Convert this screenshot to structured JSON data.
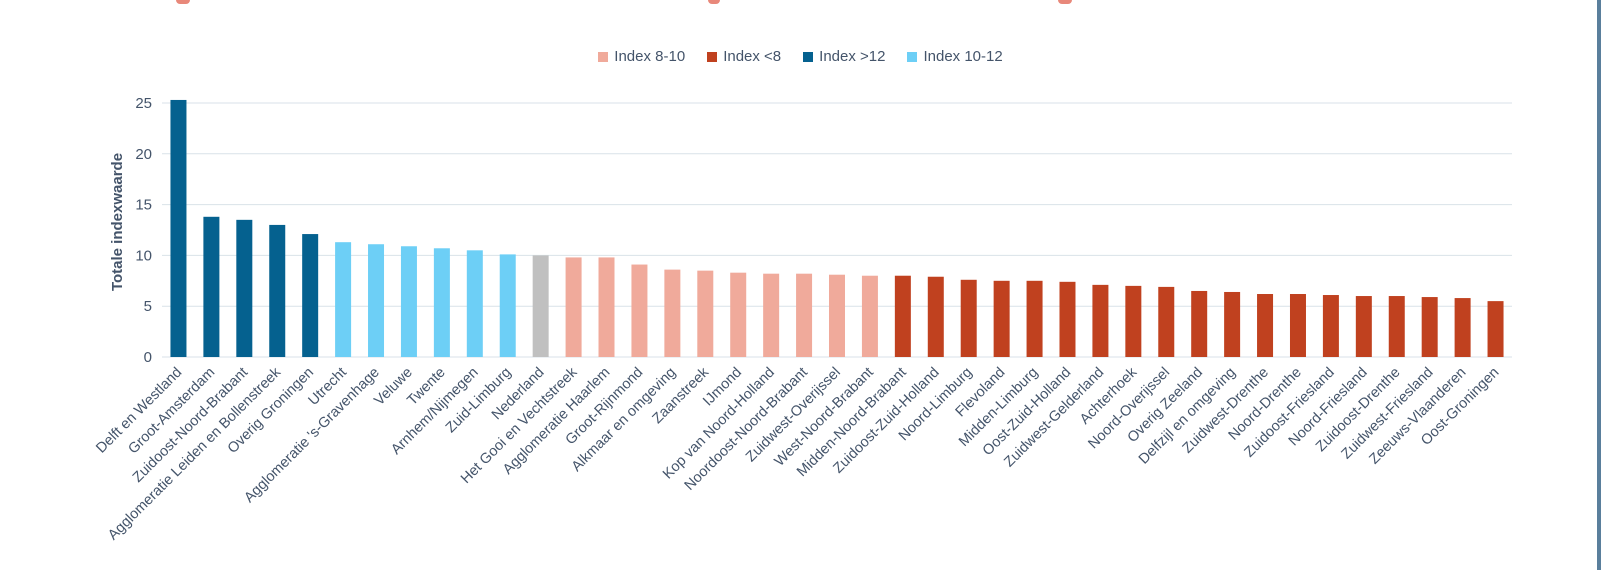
{
  "legend": [
    {
      "label": "Index 8-10",
      "color": "#f0aa9b"
    },
    {
      "label": "Index <8",
      "color": "#c0411f"
    },
    {
      "label": "Index >12",
      "color": "#05618f"
    },
    {
      "label": "Index 10-12",
      "color": "#6dcff6"
    }
  ],
  "colors": {
    "high": "#05618f",
    "mid_high": "#6dcff6",
    "national": "#c0c0c0",
    "mid_low": "#f0aa9b",
    "low": "#c0411f",
    "grid": "#d9e2e8",
    "text": "#44546a",
    "ylabel": "#44546a"
  },
  "chart_data": {
    "type": "bar",
    "ylabel": "Totale indexwaarde",
    "xlabel": "",
    "ylim": [
      0,
      25
    ],
    "yticks": [
      0,
      5,
      10,
      15,
      20,
      25
    ],
    "grid": true,
    "legend_position": "top",
    "categories": [
      "Delft en Westland",
      "Groot-Amsterdam",
      "Zuidoost-Noord-Brabant",
      "Agglomeratie Leiden en Bollenstreek",
      "Overig Groningen",
      "Utrecht",
      "Agglomeratie 's-Gravenhage",
      "Veluwe",
      "Twente",
      "Arnhem/Nijmegen",
      "Zuid-Limburg",
      "Nederland",
      "Het Gooi en Vechtstreek",
      "Agglomeratie Haarlem",
      "Groot-Rijnmond",
      "Alkmaar en omgeving",
      "Zaanstreek",
      "IJmond",
      "Kop van Noord-Holland",
      "Noordoost-Noord-Brabant",
      "Zuidwest-Overijssel",
      "West-Noord-Brabant",
      "Midden-Noord-Brabant",
      "Zuidoost-Zuid-Holland",
      "Noord-Limburg",
      "Flevoland",
      "Midden-Limburg",
      "Oost-Zuid-Holland",
      "Zuidwest-Gelderland",
      "Achterhoek",
      "Noord-Overijssel",
      "Overig Zeeland",
      "Delfzijl en omgeving",
      "Zuidwest-Drenthe",
      "Noord-Drenthe",
      "Zuidoost-Friesland",
      "Noord-Friesland",
      "Zuidoost-Drenthe",
      "Zuidwest-Friesland",
      "Zeeuws-Vlaanderen",
      "Oost-Groningen"
    ],
    "values": [
      25.3,
      13.8,
      13.5,
      13.0,
      12.1,
      11.3,
      11.1,
      10.9,
      10.7,
      10.5,
      10.1,
      10.0,
      9.8,
      9.8,
      9.1,
      8.6,
      8.5,
      8.3,
      8.2,
      8.2,
      8.1,
      8.0,
      8.0,
      7.9,
      7.6,
      7.5,
      7.5,
      7.4,
      7.1,
      7.0,
      6.9,
      6.5,
      6.4,
      6.2,
      6.2,
      6.1,
      6.0,
      6.0,
      5.9,
      5.8,
      5.5
    ],
    "groups": [
      "high",
      "high",
      "high",
      "high",
      "high",
      "mid_high",
      "mid_high",
      "mid_high",
      "mid_high",
      "mid_high",
      "mid_high",
      "national",
      "mid_low",
      "mid_low",
      "mid_low",
      "mid_low",
      "mid_low",
      "mid_low",
      "mid_low",
      "mid_low",
      "mid_low",
      "mid_low",
      "low",
      "low",
      "low",
      "low",
      "low",
      "low",
      "low",
      "low",
      "low",
      "low",
      "low",
      "low",
      "low",
      "low",
      "low",
      "low",
      "low",
      "low",
      "low"
    ]
  }
}
